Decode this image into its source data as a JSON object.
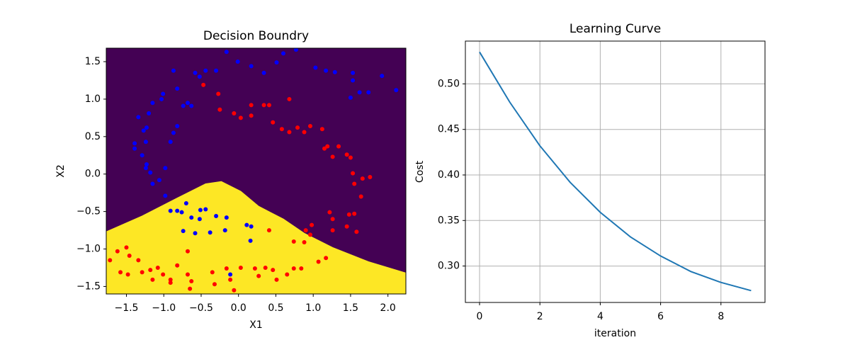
{
  "chart_data": [
    {
      "type": "scatter",
      "title": "Decision Boundry",
      "xlabel": "X1",
      "ylabel": "X2",
      "xlim": [
        -1.77,
        2.24
      ],
      "ylim": [
        -1.6,
        1.68
      ],
      "xticks": [
        {
          "value": -1.5,
          "label": "−1.5"
        },
        {
          "value": -1,
          "label": "−1.0"
        },
        {
          "value": -0.5,
          "label": "−0.5"
        },
        {
          "value": 0,
          "label": "0.0"
        },
        0.5,
        {
          "value": 1,
          "label": "1.0"
        },
        1.5,
        {
          "value": 2,
          "label": "2.0"
        }
      ],
      "yticks": [
        {
          "value": -1.5,
          "label": "−1.5"
        },
        {
          "value": -1,
          "label": "−1.0"
        },
        {
          "value": -0.5,
          "label": "−0.5"
        },
        {
          "value": 0,
          "label": "0.0"
        },
        0.5,
        {
          "value": 1,
          "label": "1.0"
        },
        1.5
      ],
      "grid": false,
      "background_color": "#440154",
      "fill_color": "#fde725",
      "boundary": {
        "x": [
          -1.77,
          -1.29,
          -0.82,
          -0.44,
          -0.23,
          0.03,
          0.27,
          0.6,
          0.88,
          1.26,
          1.74,
          2.24
        ],
        "values": [
          -0.77,
          -0.56,
          -0.32,
          -0.13,
          -0.1,
          -0.23,
          -0.43,
          -0.6,
          -0.79,
          -0.98,
          -1.17,
          -1.32
        ]
      },
      "series": [
        {
          "color": "#0000ff",
          "x": [
            -0.87,
            -0.58,
            -0.52,
            -0.3,
            -0.16,
            -0.01,
            0.17,
            0.34,
            0.51,
            0.6,
            0.77,
            1.03,
            1.17,
            1.29,
            1.53,
            1.92,
            2.11,
            1.74,
            1.62,
            1.5,
            1.53,
            -1.01,
            -1.03,
            -1.15,
            -1.2,
            -1.34,
            -1.23,
            -1.27,
            -1.24,
            -1.39,
            -1.39,
            -1.29,
            -1.23,
            -1.24,
            -1.18,
            -1.15,
            -0.98,
            -1.06,
            -0.98,
            -0.91,
            -0.76,
            -0.82,
            -0.7,
            -0.51,
            -0.44,
            -0.52,
            -0.63,
            -0.74,
            -0.58,
            -0.38,
            -0.3,
            -0.16,
            -0.18,
            0.11,
            0.17,
            0.16,
            -0.11,
            -0.63,
            -0.68,
            -0.44,
            -0.82,
            -0.87,
            -0.91,
            -0.82,
            -0.74
          ],
          "values": [
            1.38,
            1.35,
            1.3,
            1.38,
            1.63,
            1.5,
            1.44,
            1.35,
            1.49,
            1.61,
            1.66,
            1.42,
            1.38,
            1.36,
            1.35,
            1.31,
            1.12,
            1.09,
            1.09,
            1.02,
            1.25,
            1.07,
            1.0,
            0.95,
            0.81,
            0.76,
            0.62,
            0.58,
            0.43,
            0.41,
            0.34,
            0.25,
            0.13,
            0.08,
            0.02,
            -0.13,
            0.08,
            -0.08,
            -0.29,
            -0.49,
            -0.51,
            -0.49,
            -0.39,
            -0.48,
            -0.47,
            -0.6,
            -0.58,
            -0.76,
            -0.79,
            -0.78,
            -0.56,
            -0.58,
            -0.75,
            -0.68,
            -0.7,
            -0.89,
            -1.34,
            0.91,
            0.95,
            1.38,
            0.64,
            0.55,
            0.43,
            1.14,
            0.91
          ]
        },
        {
          "color": "#ff0000",
          "x": [
            -0.47,
            -0.27,
            -0.25,
            -0.06,
            0.03,
            0.17,
            0.17,
            0.34,
            0.41,
            0.46,
            0.58,
            0.68,
            0.68,
            0.79,
            0.88,
            0.96,
            1.12,
            1.15,
            1.19,
            1.26,
            1.34,
            1.45,
            1.5,
            1.53,
            1.55,
            1.66,
            1.64,
            1.76,
            1.22,
            1.26,
            1.48,
            1.55,
            1.58,
            1.45,
            1.26,
            0.98,
            0.9,
            0.96,
            0.88,
            0.74,
            1.17,
            1.07,
            0.41,
            -1.72,
            -1.62,
            -1.5,
            -1.46,
            -1.34,
            -1.18,
            -1.29,
            -1.15,
            -1.08,
            -1.01,
            -0.91,
            -0.82,
            -0.68,
            -0.63,
            -0.65,
            -0.35,
            -0.32,
            -0.16,
            -0.11,
            -0.06,
            0.03,
            0.22,
            0.27,
            0.36,
            0.46,
            0.51,
            0.65,
            0.74,
            0.84,
            -0.68,
            -1.58,
            -1.48,
            -0.91
          ],
          "values": [
            1.19,
            1.07,
            0.86,
            0.81,
            0.75,
            0.92,
            0.78,
            0.92,
            0.92,
            0.69,
            0.6,
            0.56,
            1.0,
            0.62,
            0.56,
            0.64,
            0.6,
            0.34,
            0.37,
            0.23,
            0.37,
            0.26,
            0.22,
            0.01,
            -0.13,
            -0.06,
            -0.3,
            -0.04,
            -0.51,
            -0.6,
            -0.54,
            -0.53,
            -0.77,
            -0.7,
            -0.75,
            -0.68,
            -0.75,
            -0.81,
            -0.91,
            -0.9,
            -1.12,
            -1.17,
            -0.75,
            -1.15,
            -1.03,
            -0.98,
            -1.09,
            -1.15,
            -1.28,
            -1.31,
            -1.41,
            -1.25,
            -1.34,
            -1.41,
            -1.22,
            -1.34,
            -1.43,
            -1.53,
            -1.31,
            -1.47,
            -1.26,
            -1.41,
            -1.55,
            -1.25,
            -1.26,
            -1.36,
            -1.25,
            -1.28,
            -1.41,
            -1.34,
            -1.26,
            -1.26,
            -1.03,
            -1.31,
            -1.34,
            -1.45
          ]
        }
      ]
    },
    {
      "type": "line",
      "title": "Learning Curve",
      "xlabel": "iteration",
      "ylabel": "Cost",
      "xlim": [
        -0.47,
        9.46
      ],
      "ylim": [
        0.26,
        0.547
      ],
      "xticks": [
        0,
        2,
        4,
        6,
        8
      ],
      "yticks": [
        {
          "value": 0.5,
          "label": "0.50"
        },
        0.45,
        {
          "value": 0.4,
          "label": "0.40"
        },
        0.35,
        {
          "value": 0.3,
          "label": "0.30"
        }
      ],
      "grid": true,
      "color": "#1f77b4",
      "x": [
        0,
        1,
        2,
        3,
        4,
        5,
        6,
        7,
        8,
        9
      ],
      "values": [
        0.535,
        0.48,
        0.432,
        0.392,
        0.359,
        0.332,
        0.311,
        0.294,
        0.282,
        0.273
      ]
    }
  ]
}
